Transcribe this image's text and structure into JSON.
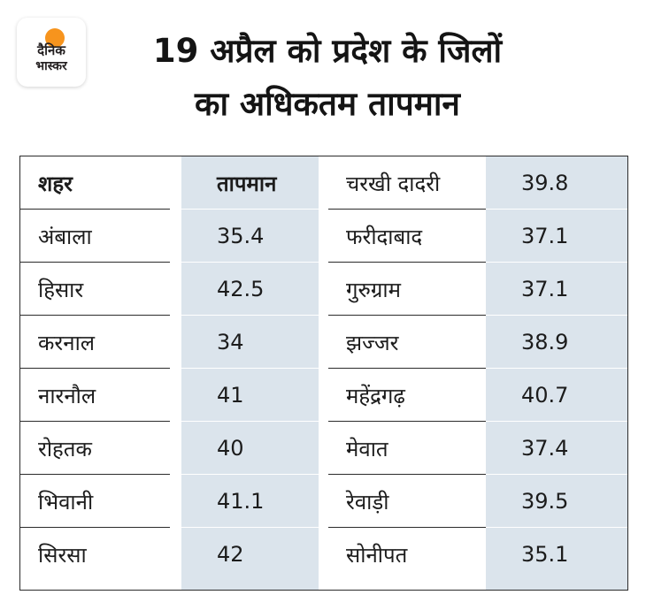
{
  "brand": {
    "line1": "दैनिक",
    "line2": "भास्कर",
    "accent_color": "#f7941d"
  },
  "title": {
    "line1": "19 अप्रैल को प्रदेश के जिलों",
    "line2": "का अधिकतम तापमान"
  },
  "table": {
    "header": {
      "city": "शहर",
      "temp": "तापमान"
    },
    "shade_color": "#dbe4ec",
    "rows": [
      {
        "left_city": "",
        "left_temp": "",
        "right_city": "चरखी दादरी",
        "right_temp": "39.8"
      },
      {
        "left_city": "अंबाला",
        "left_temp": "35.4",
        "right_city": "फरीदाबाद",
        "right_temp": "37.1"
      },
      {
        "left_city": "हिसार",
        "left_temp": "42.5",
        "right_city": "गुरुग्राम",
        "right_temp": "37.1"
      },
      {
        "left_city": "करनाल",
        "left_temp": "34",
        "right_city": "झज्जर",
        "right_temp": "38.9"
      },
      {
        "left_city": "नारनौल",
        "left_temp": "41",
        "right_city": "महेंद्रगढ़",
        "right_temp": "40.7"
      },
      {
        "left_city": "रोहतक",
        "left_temp": "40",
        "right_city": "मेवात",
        "right_temp": "37.4"
      },
      {
        "left_city": "भिवानी",
        "left_temp": "41.1",
        "right_city": "रेवाड़ी",
        "right_temp": "39.5"
      },
      {
        "left_city": "सिरसा",
        "left_temp": "42",
        "right_city": "सोनीपत",
        "right_temp": "35.1"
      }
    ]
  }
}
